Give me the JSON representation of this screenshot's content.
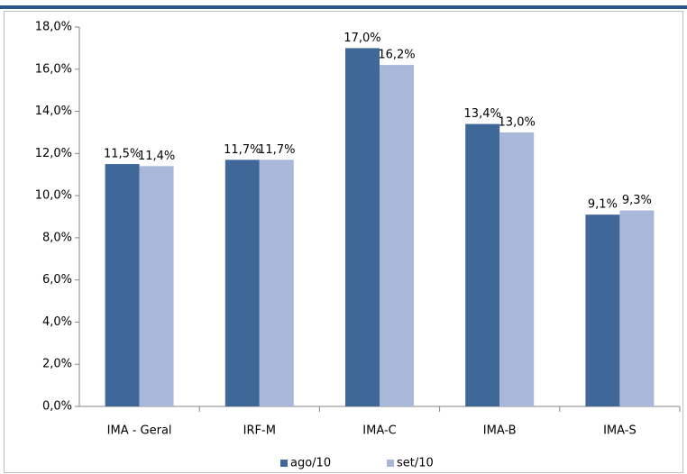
{
  "chart_data": {
    "type": "bar",
    "categories": [
      "IMA - Geral",
      "IRF-M",
      "IMA-C",
      "IMA-B",
      "IMA-S"
    ],
    "series": [
      {
        "name": "ago/10",
        "color": "#3f6899",
        "values": [
          11.5,
          11.7,
          17.0,
          13.4,
          9.1
        ],
        "value_labels": [
          "11,5%",
          "11,7%",
          "17,0%",
          "13,4%",
          "9,1%"
        ]
      },
      {
        "name": "set/10",
        "color": "#a9b8d8",
        "values": [
          11.4,
          11.7,
          16.2,
          13.0,
          9.3
        ],
        "value_labels": [
          "11,4%",
          "11,7%",
          "16,2%",
          "13,0%",
          "9,3%"
        ]
      }
    ],
    "ylim": [
      0,
      18
    ],
    "yticks": [
      {
        "value": 0,
        "label": "0,0%"
      },
      {
        "value": 2,
        "label": "2,0%"
      },
      {
        "value": 4,
        "label": "4,0%"
      },
      {
        "value": 6,
        "label": "6,0%"
      },
      {
        "value": 8,
        "label": "8,0%"
      },
      {
        "value": 10,
        "label": "10,0%"
      },
      {
        "value": 12,
        "label": "12,0%"
      },
      {
        "value": 14,
        "label": "14,0%"
      },
      {
        "value": 16,
        "label": "16,0%"
      },
      {
        "value": 18,
        "label": "18,0%"
      }
    ],
    "legend": "bottom"
  }
}
